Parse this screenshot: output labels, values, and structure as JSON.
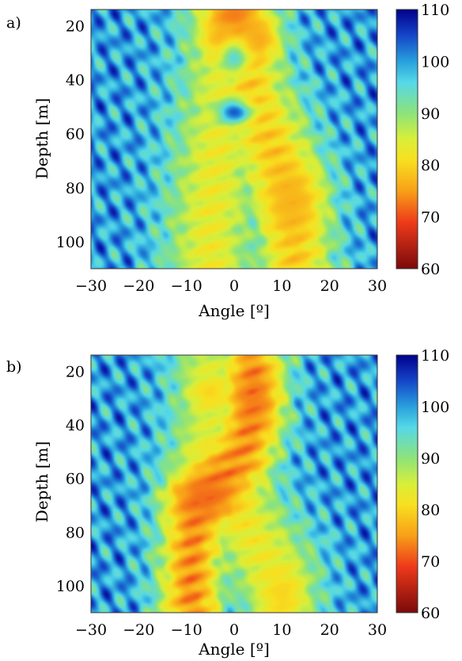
{
  "chart_data": [
    {
      "type": "heatmap",
      "panel_label": "a)",
      "xlabel": "Angle [º]",
      "ylabel": "Depth [m]",
      "xlim": [
        -30,
        30
      ],
      "ylim": [
        110,
        14
      ],
      "x_ticks": [
        -30,
        -20,
        -10,
        0,
        10,
        20,
        30
      ],
      "x_tick_labels": [
        "−30",
        "−20",
        "−10",
        "0",
        "10",
        "20",
        "30"
      ],
      "y_ticks": [
        20,
        40,
        60,
        80,
        100
      ],
      "y_tick_labels": [
        "20",
        "40",
        "60",
        "80",
        "100"
      ],
      "colorbar": {
        "range": [
          60,
          110
        ],
        "ticks": [
          110,
          100,
          90,
          80,
          70,
          60
        ],
        "tick_labels": [
          "110",
          "100",
          "90",
          "80",
          "70",
          "60"
        ],
        "colormap": "jet (reversed: low = red, high = dark blue)"
      },
      "features": [
        {
          "type": "ridge",
          "points": [
            [
              0,
              15
            ],
            [
              -1,
              30
            ],
            [
              -2,
              50
            ],
            [
              -4,
              75
            ],
            [
              -5,
              95
            ],
            [
              -5,
              110
            ]
          ],
          "value": 83,
          "width": 7
        },
        {
          "type": "ridge",
          "points": [
            [
              0,
              15
            ],
            [
              2,
              30
            ],
            [
              4,
              50
            ],
            [
              8,
              65
            ],
            [
              12,
              85
            ],
            [
              13,
              110
            ]
          ],
          "value": 79,
          "width": 6
        },
        {
          "type": "blob",
          "x": 0,
          "y": 16,
          "value": 73,
          "rx": 4,
          "ry": 5
        },
        {
          "type": "blob",
          "x": -2,
          "y": 25,
          "value": 76,
          "rx": 3,
          "ry": 5
        },
        {
          "type": "blob",
          "x": 5,
          "y": 25,
          "value": 76,
          "rx": 3,
          "ry": 5
        },
        {
          "type": "blob",
          "x": 12,
          "y": 85,
          "value": 77,
          "rx": 4,
          "ry": 9
        },
        {
          "type": "blob",
          "x": 0,
          "y": 52,
          "value": 104,
          "rx": 2.5,
          "ry": 3
        },
        {
          "type": "blob",
          "x": 0,
          "y": 32,
          "value": 95,
          "rx": 2,
          "ry": 4
        }
      ]
    },
    {
      "type": "heatmap",
      "panel_label": "b)",
      "xlabel": "Angle [º]",
      "ylabel": "Depth [m]",
      "xlim": [
        -30,
        30
      ],
      "ylim": [
        110,
        14
      ],
      "x_ticks": [
        -30,
        -20,
        -10,
        0,
        10,
        20,
        30
      ],
      "x_tick_labels": [
        "−30",
        "−20",
        "−10",
        "0",
        "10",
        "20",
        "30"
      ],
      "y_ticks": [
        20,
        40,
        60,
        80,
        100
      ],
      "y_tick_labels": [
        "20",
        "40",
        "60",
        "80",
        "100"
      ],
      "colorbar": {
        "range": [
          60,
          110
        ],
        "ticks": [
          110,
          100,
          90,
          80,
          70,
          60
        ],
        "tick_labels": [
          "110",
          "100",
          "90",
          "80",
          "70",
          "60"
        ],
        "colormap": "jet (reversed: low = red, high = dark blue)"
      },
      "features": [
        {
          "type": "ridge",
          "points": [
            [
              4,
              20
            ],
            [
              4,
              35
            ],
            [
              2,
              50
            ],
            [
              -4,
              62
            ],
            [
              -8,
              72
            ],
            [
              -9,
              90
            ],
            [
              -9,
              110
            ]
          ],
          "value": 74,
          "width": 5
        },
        {
          "type": "ridge",
          "points": [
            [
              -5,
              20
            ],
            [
              -5,
              40
            ],
            [
              -7,
              60
            ]
          ],
          "value": 85,
          "width": 6
        },
        {
          "type": "ridge",
          "points": [
            [
              0,
              70
            ],
            [
              5,
              85
            ],
            [
              10,
              100
            ],
            [
              10,
              110
            ]
          ],
          "value": 83,
          "width": 6
        },
        {
          "type": "blob",
          "x": 4,
          "y": 30,
          "value": 73,
          "rx": 3,
          "ry": 7
        },
        {
          "type": "blob",
          "x": -6,
          "y": 67,
          "value": 72,
          "rx": 5,
          "ry": 6
        },
        {
          "type": "blob",
          "x": -5,
          "y": 28,
          "value": 80,
          "rx": 3,
          "ry": 4
        },
        {
          "type": "blob",
          "x": 10,
          "y": 103,
          "value": 80,
          "rx": 3,
          "ry": 6
        },
        {
          "type": "blob",
          "x": -5,
          "y": 50,
          "value": 82,
          "rx": 3,
          "ry": 4
        }
      ]
    }
  ]
}
